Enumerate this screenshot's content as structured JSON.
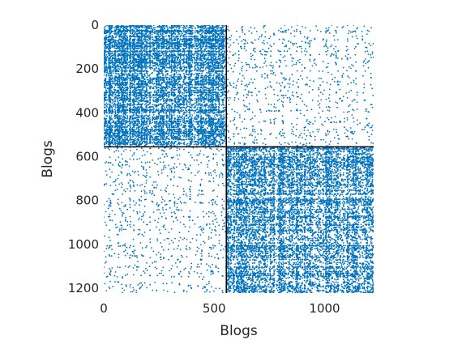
{
  "chart_data": {
    "type": "scatter",
    "subtype": "spy (sparse adjacency matrix pattern)",
    "title": "",
    "xlabel": "Blogs",
    "ylabel": "Blogs",
    "xlim": [
      0,
      1222
    ],
    "ylim": [
      1222,
      0
    ],
    "y_axis_reversed": true,
    "x_ticks": [
      0,
      500,
      1000
    ],
    "x_tick_labels": [
      "0",
      "500",
      "1000"
    ],
    "y_ticks": [
      0,
      200,
      400,
      600,
      800,
      1000,
      1200
    ],
    "y_tick_labels": [
      "0",
      "200",
      "400",
      "600",
      "800",
      "1000",
      "1200"
    ],
    "n_nodes": 1222,
    "block_boundary": 555,
    "blocks": [
      {
        "name": "block-11",
        "rows": [
          0,
          555
        ],
        "cols": [
          0,
          555
        ],
        "density": "high"
      },
      {
        "name": "block-12",
        "rows": [
          0,
          555
        ],
        "cols": [
          555,
          1222
        ],
        "density": "low"
      },
      {
        "name": "block-21",
        "rows": [
          555,
          1222
        ],
        "cols": [
          0,
          555
        ],
        "density": "low"
      },
      {
        "name": "block-22",
        "rows": [
          555,
          1222
        ],
        "cols": [
          555,
          1222
        ],
        "density": "high"
      }
    ],
    "marker_color": "#0072bd",
    "boundary_line_color": "#000000",
    "grid": false,
    "legend": "none"
  }
}
